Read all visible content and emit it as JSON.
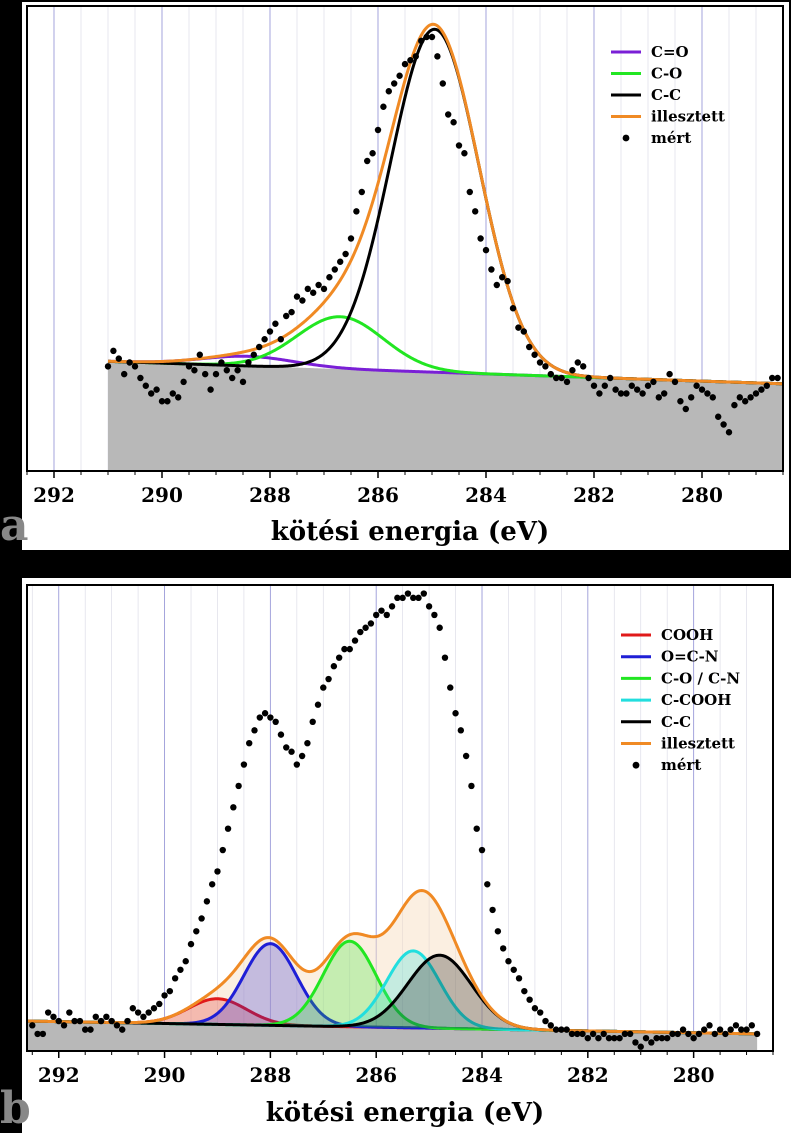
{
  "chart_data": [
    {
      "panel_label": "a",
      "type": "line",
      "xlabel": "kötési energia (eV)",
      "xlim": [
        292.5,
        278.5
      ],
      "ylim": [
        -0.12,
        1.08
      ],
      "x_ticks": [
        292,
        290,
        288,
        286,
        284,
        282,
        280
      ],
      "x_reversed": true,
      "grid": "vertical",
      "legend_position": "top-right",
      "background_range": [
        291,
        278.5
      ],
      "background": {
        "left": 0.163,
        "right": 0.105
      },
      "components": [
        {
          "name": "C=O",
          "color": "#7a1fd6",
          "center": 288.4,
          "height": 0.025,
          "sigma": 0.85
        },
        {
          "name": "C-O",
          "color": "#22e622",
          "center": 286.7,
          "height": 0.135,
          "sigma": 0.8
        },
        {
          "name": "C-C",
          "color": "#000000",
          "center": 284.95,
          "height": 0.885,
          "sigma": 0.82
        }
      ],
      "fit": {
        "name": "illesztett",
        "color": "#f08a24"
      },
      "measured": {
        "name": "mért",
        "color": "#000000",
        "x": [
          291.0,
          290.9,
          290.8,
          290.7,
          290.6,
          290.5,
          290.4,
          290.3,
          290.2,
          290.1,
          290.0,
          289.9,
          289.8,
          289.7,
          289.6,
          289.5,
          289.4,
          289.3,
          289.2,
          289.1,
          289.0,
          288.9,
          288.8,
          288.7,
          288.6,
          288.5,
          288.4,
          288.3,
          288.2,
          288.1,
          288.0,
          287.9,
          287.8,
          287.7,
          287.6,
          287.5,
          287.4,
          287.3,
          287.2,
          287.1,
          287.0,
          286.9,
          286.8,
          286.7,
          286.6,
          286.5,
          286.4,
          286.3,
          286.2,
          286.1,
          286.0,
          285.9,
          285.8,
          285.7,
          285.6,
          285.5,
          285.4,
          285.3,
          285.2,
          285.1,
          285.0,
          284.9,
          284.8,
          284.7,
          284.6,
          284.5,
          284.4,
          284.3,
          284.2,
          284.1,
          284.0,
          283.9,
          283.8,
          283.7,
          283.6,
          283.5,
          283.4,
          283.3,
          283.2,
          283.1,
          283.0,
          282.9,
          282.8,
          282.7,
          282.6,
          282.5,
          282.4,
          282.3,
          282.2,
          282.1,
          282.0,
          281.9,
          281.8,
          281.7,
          281.6,
          281.5,
          281.4,
          281.3,
          281.2,
          281.1,
          281.0,
          280.9,
          280.8,
          280.7,
          280.6,
          280.5,
          280.4,
          280.3,
          280.2,
          280.1,
          280.0,
          279.9,
          279.8,
          279.7,
          279.6,
          279.5,
          279.4,
          279.3,
          279.2,
          279.1,
          279.0,
          278.9,
          278.8,
          278.7,
          278.6
        ],
        "y": [
          0.15,
          0.19,
          0.17,
          0.13,
          0.16,
          0.15,
          0.12,
          0.1,
          0.08,
          0.09,
          0.06,
          0.06,
          0.08,
          0.07,
          0.11,
          0.15,
          0.14,
          0.18,
          0.13,
          0.09,
          0.13,
          0.16,
          0.14,
          0.12,
          0.14,
          0.11,
          0.16,
          0.18,
          0.2,
          0.22,
          0.24,
          0.26,
          0.22,
          0.28,
          0.29,
          0.33,
          0.32,
          0.35,
          0.34,
          0.36,
          0.35,
          0.38,
          0.4,
          0.42,
          0.44,
          0.48,
          0.55,
          0.6,
          0.68,
          0.7,
          0.76,
          0.82,
          0.86,
          0.88,
          0.9,
          0.93,
          0.94,
          0.95,
          0.99,
          1.0,
          1.0,
          0.95,
          0.88,
          0.8,
          0.78,
          0.72,
          0.7,
          0.6,
          0.55,
          0.48,
          0.45,
          0.4,
          0.36,
          0.38,
          0.37,
          0.3,
          0.25,
          0.24,
          0.2,
          0.18,
          0.16,
          0.15,
          0.13,
          0.12,
          0.12,
          0.11,
          0.14,
          0.16,
          0.15,
          0.12,
          0.1,
          0.08,
          0.1,
          0.12,
          0.09,
          0.08,
          0.08,
          0.1,
          0.09,
          0.08,
          0.1,
          0.11,
          0.07,
          0.08,
          0.13,
          0.11,
          0.06,
          0.04,
          0.07,
          0.1,
          0.09,
          0.08,
          0.07,
          0.02,
          0.0,
          -0.02,
          0.05,
          0.07,
          0.06,
          0.07,
          0.08,
          0.09,
          0.1,
          0.12,
          0.12
        ]
      }
    },
    {
      "panel_label": "b",
      "type": "line",
      "xlabel": "kötési energia (eV)",
      "xlim": [
        292.6,
        278.5
      ],
      "ylim": [
        -0.07,
        1.02
      ],
      "x_ticks": [
        292,
        290,
        288,
        286,
        284,
        282,
        280
      ],
      "x_reversed": true,
      "grid": "vertical",
      "legend_position": "top-right",
      "background_range": [
        292.6,
        278.8
      ],
      "background": {
        "left": 0.0,
        "right": -0.03
      },
      "components": [
        {
          "name": "COOH",
          "color": "#e01a1a",
          "center": 289.0,
          "height": 0.06,
          "sigma": 0.55
        },
        {
          "name": "O=C-N",
          "color": "#1f1fd6",
          "center": 288.0,
          "height": 0.191,
          "sigma": 0.5
        },
        {
          "name": "C-O / C-N",
          "color": "#22e622",
          "center": 286.5,
          "height": 0.2,
          "sigma": 0.5
        },
        {
          "name": "C-COOH",
          "color": "#22dede",
          "center": 285.3,
          "height": 0.18,
          "sigma": 0.5
        },
        {
          "name": "C-C",
          "color": "#000000",
          "center": 284.8,
          "height": 0.171,
          "sigma": 0.6
        }
      ],
      "fit": {
        "name": "illesztett",
        "color": "#f08a24"
      },
      "measured": {
        "name": "mért",
        "color": "#000000",
        "x": [
          292.5,
          292.4,
          292.3,
          292.2,
          292.1,
          292.0,
          291.9,
          291.8,
          291.7,
          291.6,
          291.5,
          291.4,
          291.3,
          291.2,
          291.1,
          291.0,
          290.9,
          290.8,
          290.7,
          290.6,
          290.5,
          290.4,
          290.3,
          290.2,
          290.1,
          290.0,
          289.9,
          289.8,
          289.7,
          289.6,
          289.5,
          289.4,
          289.3,
          289.2,
          289.1,
          289.0,
          288.9,
          288.8,
          288.7,
          288.6,
          288.5,
          288.4,
          288.3,
          288.2,
          288.1,
          288.0,
          287.9,
          287.8,
          287.7,
          287.6,
          287.5,
          287.4,
          287.3,
          287.2,
          287.1,
          287.0,
          286.9,
          286.8,
          286.7,
          286.6,
          286.5,
          286.4,
          286.3,
          286.2,
          286.1,
          286.0,
          285.9,
          285.8,
          285.7,
          285.6,
          285.5,
          285.4,
          285.3,
          285.2,
          285.1,
          285.0,
          284.9,
          284.8,
          284.7,
          284.6,
          284.5,
          284.4,
          284.3,
          284.2,
          284.1,
          284.0,
          283.9,
          283.8,
          283.7,
          283.6,
          283.5,
          283.4,
          283.3,
          283.2,
          283.1,
          283.0,
          282.9,
          282.8,
          282.7,
          282.6,
          282.5,
          282.4,
          282.3,
          282.2,
          282.1,
          282.0,
          281.9,
          281.8,
          281.7,
          281.6,
          281.5,
          281.4,
          281.3,
          281.2,
          281.1,
          281.0,
          280.9,
          280.8,
          280.7,
          280.6,
          280.5,
          280.4,
          280.3,
          280.2,
          280.1,
          280.0,
          279.9,
          279.8,
          279.7,
          279.6,
          279.5,
          279.4,
          279.3,
          279.2,
          279.1,
          279.0,
          278.9,
          278.8
        ],
        "y": [
          -0.01,
          -0.03,
          -0.03,
          0.02,
          0.01,
          0.0,
          -0.01,
          0.02,
          0.0,
          0.0,
          -0.02,
          -0.02,
          0.01,
          0.0,
          0.01,
          0.0,
          -0.01,
          -0.02,
          0.0,
          0.03,
          0.02,
          0.01,
          0.02,
          0.03,
          0.04,
          0.06,
          0.07,
          0.1,
          0.12,
          0.14,
          0.18,
          0.21,
          0.24,
          0.28,
          0.32,
          0.35,
          0.4,
          0.45,
          0.5,
          0.55,
          0.6,
          0.65,
          0.68,
          0.71,
          0.72,
          0.71,
          0.7,
          0.67,
          0.64,
          0.63,
          0.6,
          0.62,
          0.65,
          0.7,
          0.74,
          0.78,
          0.8,
          0.83,
          0.85,
          0.87,
          0.87,
          0.89,
          0.91,
          0.92,
          0.93,
          0.95,
          0.96,
          0.95,
          0.97,
          0.99,
          0.99,
          1.0,
          0.99,
          0.99,
          1.0,
          0.97,
          0.95,
          0.92,
          0.85,
          0.78,
          0.72,
          0.68,
          0.62,
          0.55,
          0.45,
          0.4,
          0.32,
          0.26,
          0.21,
          0.17,
          0.14,
          0.12,
          0.1,
          0.07,
          0.05,
          0.03,
          0.02,
          0.0,
          -0.01,
          -0.02,
          -0.02,
          -0.02,
          -0.03,
          -0.03,
          -0.03,
          -0.04,
          -0.03,
          -0.04,
          -0.03,
          -0.04,
          -0.04,
          -0.04,
          -0.03,
          -0.03,
          -0.05,
          -0.06,
          -0.04,
          -0.05,
          -0.04,
          -0.04,
          -0.04,
          -0.03,
          -0.03,
          -0.02,
          -0.03,
          -0.04,
          -0.03,
          -0.02,
          -0.01,
          -0.03,
          -0.02,
          -0.03,
          -0.02,
          -0.01,
          -0.02,
          -0.02,
          -0.01,
          -0.03
        ]
      }
    }
  ]
}
